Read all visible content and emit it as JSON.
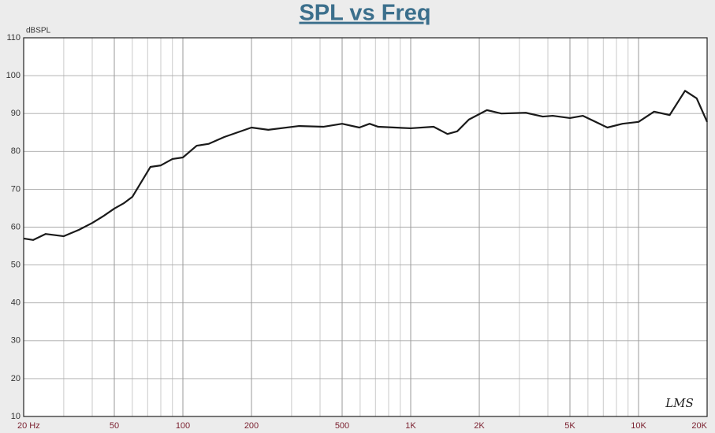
{
  "chart_data": {
    "type": "line",
    "title": "SPL vs Freq",
    "y_label": "dBSPL",
    "watermark": "LMS",
    "x_log": true,
    "grid": true,
    "xlim": [
      20,
      20000
    ],
    "ylim": [
      10,
      110
    ],
    "xticks": [
      {
        "value": 20,
        "label": "20 Hz"
      },
      50,
      100,
      200,
      500,
      {
        "value": 1000,
        "label": "1K"
      },
      {
        "value": 2000,
        "label": "2K"
      },
      {
        "value": 5000,
        "label": "5K"
      },
      {
        "value": 10000,
        "label": "10K"
      },
      {
        "value": 20000,
        "label": "20K"
      }
    ],
    "yticks": [
      10,
      20,
      30,
      40,
      50,
      60,
      70,
      80,
      90,
      100,
      110
    ],
    "x": [
      20,
      22,
      25,
      30,
      35,
      40,
      45,
      50,
      55,
      60,
      72,
      80,
      90,
      100,
      115,
      130,
      152,
      200,
      237,
      323,
      413,
      500,
      595,
      660,
      720,
      1000,
      1260,
      1450,
      1600,
      1800,
      2160,
      2500,
      3200,
      3800,
      4200,
      5000,
      5700,
      7300,
      8500,
      10000,
      11700,
      13700,
      16000,
      18000,
      20000
    ],
    "series": [
      {
        "name": "SPL",
        "color": "#1a1a1a",
        "values": [
          57,
          56.6,
          58.2,
          57.6,
          59.3,
          61.1,
          63,
          64.9,
          66.3,
          68,
          75.9,
          76.3,
          78,
          78.4,
          81.5,
          82,
          83.8,
          86.3,
          85.7,
          86.7,
          86.5,
          87.3,
          86.3,
          87.3,
          86.5,
          86.1,
          86.5,
          84.6,
          85.3,
          88.4,
          90.9,
          90,
          90.2,
          89.2,
          89.4,
          88.8,
          89.4,
          86.3,
          87.3,
          87.8,
          90.5,
          89.6,
          96,
          94,
          87.8
        ]
      }
    ]
  }
}
